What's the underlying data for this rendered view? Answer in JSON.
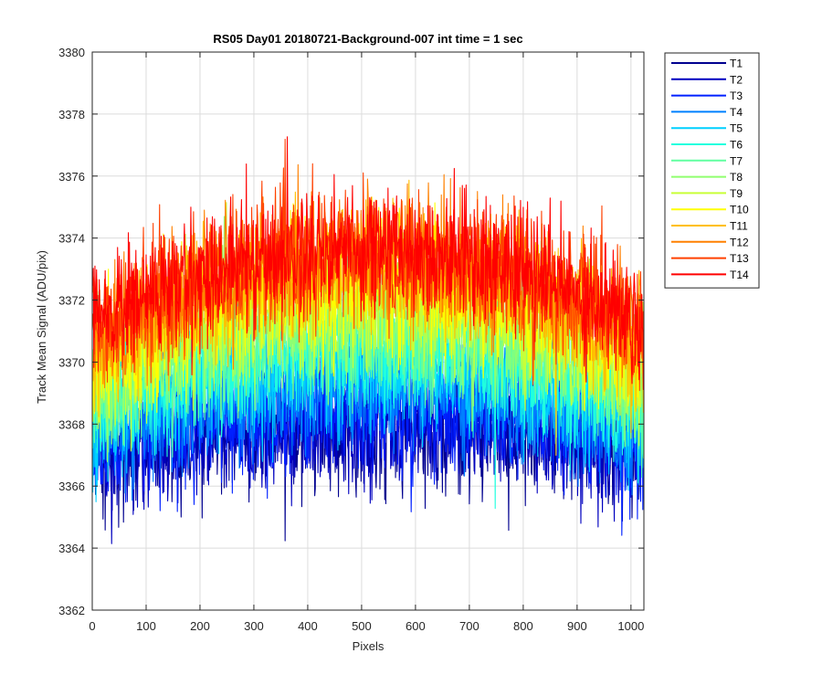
{
  "chart_data": {
    "type": "line",
    "title": "RS05 Day01 20180721-Background-007 int time = 1 sec",
    "xlabel": "Pixels",
    "ylabel": "Track Mean Signal (ADU/pix)",
    "xlim": [
      0,
      1024
    ],
    "ylim": [
      3362,
      3380
    ],
    "xticks": [
      0,
      100,
      200,
      300,
      400,
      500,
      600,
      700,
      800,
      900,
      1000
    ],
    "yticks": [
      3362,
      3364,
      3366,
      3368,
      3370,
      3372,
      3374,
      3376,
      3378,
      3380
    ],
    "grid": true,
    "legend_position": "outside-top-right",
    "x_range": [
      1,
      1024
    ],
    "series": [
      {
        "name": "T1",
        "color": "#00008f",
        "edge_mean": 3366.9,
        "center_mean": 3368.0,
        "noise": 1.0
      },
      {
        "name": "T2",
        "color": "#0000bf",
        "edge_mean": 3367.0,
        "center_mean": 3368.1,
        "noise": 1.0
      },
      {
        "name": "T3",
        "color": "#0020ff",
        "edge_mean": 3367.3,
        "center_mean": 3368.6,
        "noise": 1.0
      },
      {
        "name": "T4",
        "color": "#0080ff",
        "edge_mean": 3367.7,
        "center_mean": 3369.3,
        "noise": 1.0
      },
      {
        "name": "T5",
        "color": "#00d0ff",
        "edge_mean": 3368.1,
        "center_mean": 3369.9,
        "noise": 1.0
      },
      {
        "name": "T6",
        "color": "#20ffdf",
        "edge_mean": 3368.5,
        "center_mean": 3370.5,
        "noise": 1.0
      },
      {
        "name": "T7",
        "color": "#60ffa0",
        "edge_mean": 3368.9,
        "center_mean": 3371.0,
        "noise": 1.0
      },
      {
        "name": "T8",
        "color": "#90ff6f",
        "edge_mean": 3369.2,
        "center_mean": 3371.5,
        "noise": 1.0
      },
      {
        "name": "T9",
        "color": "#c8ff37",
        "edge_mean": 3369.6,
        "center_mean": 3372.0,
        "noise": 1.0
      },
      {
        "name": "T10",
        "color": "#ffff00",
        "edge_mean": 3370.0,
        "center_mean": 3372.5,
        "noise": 1.0
      },
      {
        "name": "T11",
        "color": "#ffbf00",
        "edge_mean": 3370.4,
        "center_mean": 3373.0,
        "noise": 1.0
      },
      {
        "name": "T12",
        "color": "#ff8000",
        "edge_mean": 3370.8,
        "center_mean": 3373.4,
        "noise": 1.0
      },
      {
        "name": "T13",
        "color": "#ff4000",
        "edge_mean": 3371.0,
        "center_mean": 3373.6,
        "noise": 1.0
      },
      {
        "name": "T14",
        "color": "#ff0000",
        "edge_mean": 3371.2,
        "center_mean": 3373.7,
        "noise": 1.0
      }
    ]
  }
}
